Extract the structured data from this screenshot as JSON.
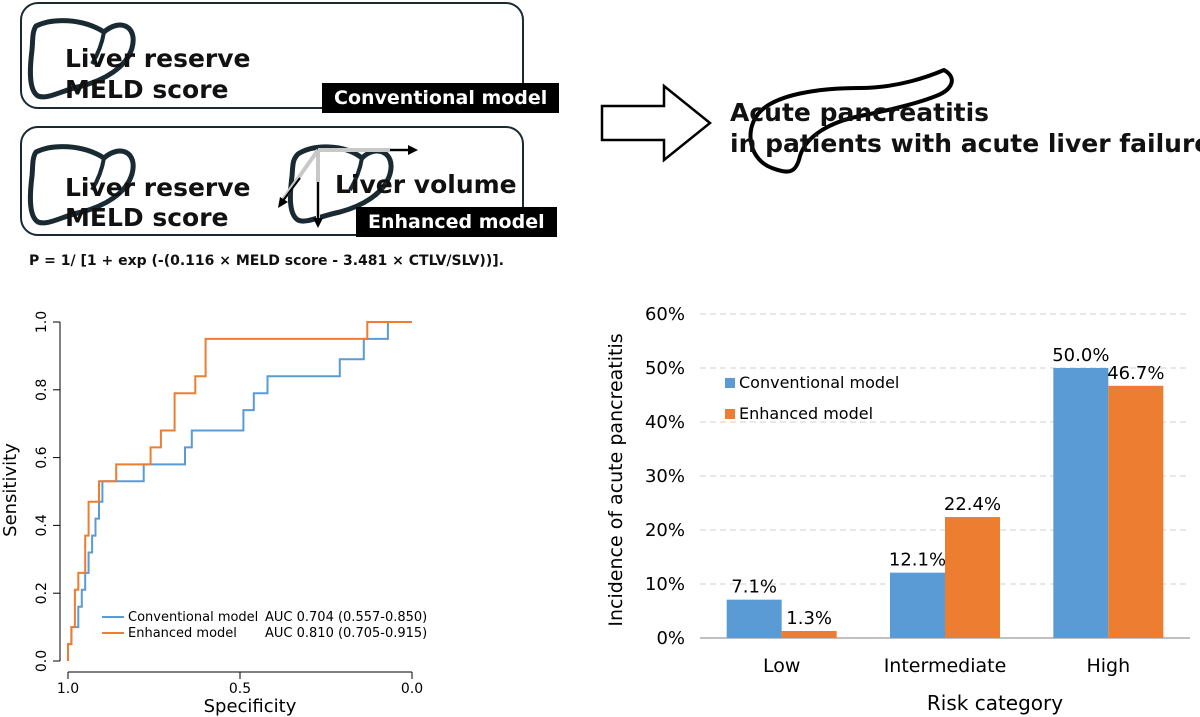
{
  "top": {
    "conventional": {
      "line1": "Liver reserve",
      "line2": "MELD score",
      "tag": "Conventional model"
    },
    "enhanced": {
      "line1": "Liver reserve",
      "line2": "MELD score",
      "volume": "Liver volume",
      "tag": "Enhanced model"
    },
    "formula": "P = 1/ [1 + exp (-(0.116 × MELD score - 3.481 × CTLV/SLV))].",
    "outcome": {
      "line1": "Acute pancreatitis",
      "line2": "in patients with acute liver failure"
    }
  },
  "colors": {
    "conventional": "#5b9bd5",
    "enhanced": "#ed7d31",
    "box_border": "#1a2a33"
  },
  "icons": [
    "liver-outline-icon",
    "arrow-right-outline-icon",
    "pancreas-outline-icon",
    "volume-axes-icon"
  ],
  "chart_data": [
    {
      "type": "line",
      "xlabel": "Specificity",
      "ylabel": "Sensitivity",
      "xlim": [
        1.0,
        0.0
      ],
      "ylim": [
        0.0,
        1.0
      ],
      "xticks": [
        "1.0",
        "0.5",
        "0.0"
      ],
      "yticks": [
        "0.0",
        "0.2",
        "0.4",
        "0.6",
        "0.8",
        "1.0"
      ],
      "legend_position": "bottom-right",
      "series": [
        {
          "name": "Conventional model",
          "auc_label": "AUC 0.704 (0.557-0.850)",
          "points": [
            [
              1.0,
              0.0
            ],
            [
              1.0,
              0.05
            ],
            [
              0.99,
              0.05
            ],
            [
              0.99,
              0.1
            ],
            [
              0.97,
              0.1
            ],
            [
              0.97,
              0.16
            ],
            [
              0.96,
              0.16
            ],
            [
              0.96,
              0.21
            ],
            [
              0.95,
              0.21
            ],
            [
              0.95,
              0.26
            ],
            [
              0.94,
              0.26
            ],
            [
              0.94,
              0.32
            ],
            [
              0.93,
              0.32
            ],
            [
              0.93,
              0.37
            ],
            [
              0.92,
              0.37
            ],
            [
              0.92,
              0.42
            ],
            [
              0.91,
              0.42
            ],
            [
              0.91,
              0.47
            ],
            [
              0.9,
              0.47
            ],
            [
              0.9,
              0.53
            ],
            [
              0.78,
              0.53
            ],
            [
              0.78,
              0.58
            ],
            [
              0.66,
              0.58
            ],
            [
              0.66,
              0.63
            ],
            [
              0.64,
              0.63
            ],
            [
              0.64,
              0.68
            ],
            [
              0.49,
              0.68
            ],
            [
              0.49,
              0.74
            ],
            [
              0.46,
              0.74
            ],
            [
              0.46,
              0.79
            ],
            [
              0.42,
              0.79
            ],
            [
              0.42,
              0.84
            ],
            [
              0.21,
              0.84
            ],
            [
              0.21,
              0.89
            ],
            [
              0.14,
              0.89
            ],
            [
              0.14,
              0.95
            ],
            [
              0.07,
              0.95
            ],
            [
              0.07,
              1.0
            ],
            [
              0.0,
              1.0
            ]
          ]
        },
        {
          "name": "Enhanced model",
          "auc_label": "AUC 0.810 (0.705-0.915)",
          "points": [
            [
              1.0,
              0.0
            ],
            [
              1.0,
              0.05
            ],
            [
              0.99,
              0.05
            ],
            [
              0.99,
              0.1
            ],
            [
              0.98,
              0.1
            ],
            [
              0.98,
              0.21
            ],
            [
              0.97,
              0.21
            ],
            [
              0.97,
              0.26
            ],
            [
              0.95,
              0.26
            ],
            [
              0.95,
              0.37
            ],
            [
              0.94,
              0.37
            ],
            [
              0.94,
              0.47
            ],
            [
              0.91,
              0.47
            ],
            [
              0.91,
              0.53
            ],
            [
              0.86,
              0.53
            ],
            [
              0.86,
              0.58
            ],
            [
              0.76,
              0.58
            ],
            [
              0.76,
              0.63
            ],
            [
              0.73,
              0.63
            ],
            [
              0.73,
              0.68
            ],
            [
              0.69,
              0.68
            ],
            [
              0.69,
              0.79
            ],
            [
              0.63,
              0.79
            ],
            [
              0.63,
              0.84
            ],
            [
              0.6,
              0.84
            ],
            [
              0.6,
              0.95
            ],
            [
              0.13,
              0.95
            ],
            [
              0.13,
              1.0
            ],
            [
              0.0,
              1.0
            ]
          ]
        }
      ]
    },
    {
      "type": "bar",
      "xlabel": "Risk category",
      "ylabel": "Incidence of acute pancreatitis",
      "categories": [
        "Low",
        "Intermediate",
        "High"
      ],
      "ylim": [
        0,
        60
      ],
      "yticks": [
        "0%",
        "10%",
        "20%",
        "30%",
        "40%",
        "50%",
        "60%"
      ],
      "grid": true,
      "legend_position": "top-left",
      "series": [
        {
          "name": "Conventional model",
          "values": [
            7.1,
            12.1,
            50.0
          ],
          "labels": [
            "7.1%",
            "12.1%",
            "50.0%"
          ]
        },
        {
          "name": "Enhanced model",
          "values": [
            1.3,
            22.4,
            46.7
          ],
          "labels": [
            "1.3%",
            "22.4%",
            "46.7%"
          ]
        }
      ]
    }
  ]
}
